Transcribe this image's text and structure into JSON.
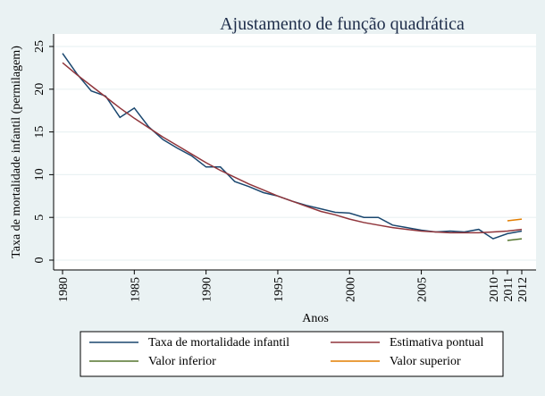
{
  "chart_data": {
    "type": "line",
    "title": "Ajustamento de função quadrática",
    "xlabel": "Anos",
    "ylabel": "Taxa de mortalidade infantil (permilagem)",
    "xlim": [
      1980,
      2012
    ],
    "ylim": [
      0,
      25
    ],
    "xticks": [
      1980,
      1985,
      1990,
      1995,
      2000,
      2005,
      2010,
      2011,
      2012
    ],
    "yticks": [
      0,
      5,
      10,
      15,
      20,
      25
    ],
    "grid": true,
    "legend_position": "bottom",
    "series": [
      {
        "name": "Taxa de mortalidade infantil",
        "color": "#1a476f",
        "x": [
          1980,
          1981,
          1982,
          1983,
          1984,
          1985,
          1986,
          1987,
          1988,
          1989,
          1990,
          1991,
          1992,
          1993,
          1994,
          1995,
          1996,
          1997,
          1998,
          1999,
          2000,
          2001,
          2002,
          2003,
          2004,
          2005,
          2006,
          2007,
          2008,
          2009,
          2010,
          2011,
          2012
        ],
        "values": [
          24.2,
          21.8,
          19.8,
          19.2,
          16.7,
          17.8,
          15.6,
          14.1,
          13.1,
          12.2,
          10.9,
          10.9,
          9.2,
          8.6,
          7.9,
          7.5,
          6.9,
          6.4,
          6.0,
          5.6,
          5.5,
          5.0,
          5.0,
          4.1,
          3.8,
          3.5,
          3.3,
          3.4,
          3.3,
          3.6,
          2.5,
          3.1,
          3.4
        ]
      },
      {
        "name": "Estimativa pontual",
        "color": "#90353b",
        "x": [
          1980,
          1981,
          1982,
          1983,
          1984,
          1985,
          1986,
          1987,
          1988,
          1989,
          1990,
          1991,
          1992,
          1993,
          1994,
          1995,
          1996,
          1997,
          1998,
          1999,
          2000,
          2001,
          2002,
          2003,
          2004,
          2005,
          2006,
          2007,
          2008,
          2009,
          2010,
          2011,
          2012
        ],
        "values": [
          23.1,
          21.7,
          20.4,
          19.1,
          17.8,
          16.6,
          15.5,
          14.4,
          13.4,
          12.4,
          11.4,
          10.5,
          9.7,
          8.9,
          8.2,
          7.5,
          6.9,
          6.3,
          5.7,
          5.3,
          4.8,
          4.4,
          4.1,
          3.8,
          3.6,
          3.4,
          3.3,
          3.2,
          3.2,
          3.2,
          3.3,
          3.4,
          3.6
        ]
      },
      {
        "name": "Valor inferior",
        "color": "#55752f",
        "x": [
          2011,
          2012
        ],
        "values": [
          2.3,
          2.5
        ]
      },
      {
        "name": "Valor superior",
        "color": "#e37e00",
        "x": [
          2011,
          2012
        ],
        "values": [
          4.6,
          4.8
        ]
      }
    ]
  }
}
